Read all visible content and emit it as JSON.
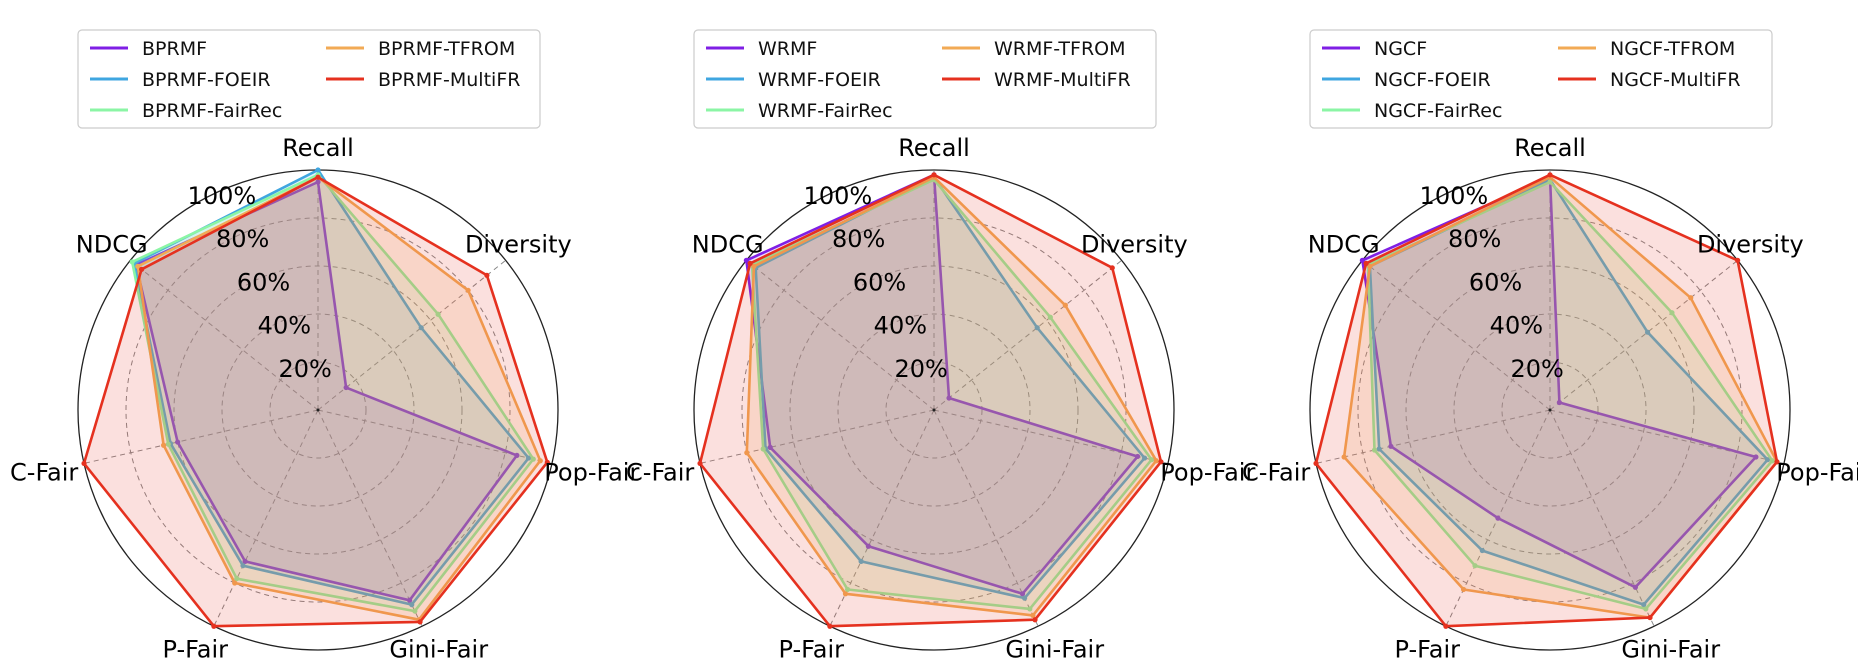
{
  "axes": [
    "Recall",
    "Diversity",
    "Pop-Fair",
    "Gini-Fair",
    "P-Fair",
    "C-Fair",
    "NDCG"
  ],
  "rticks": [
    "20%",
    "40%",
    "60%",
    "80%",
    "100%"
  ],
  "colors": {
    "base": "#7F1FE5",
    "foeir": "#3FA6E0",
    "fairrec": "#8BF5A5",
    "tfrom": "#F2AA55",
    "multifr": "#E5311F"
  },
  "chart_data": [
    {
      "type": "radar",
      "axes": [
        "Recall",
        "Diversity",
        "Pop-Fair",
        "Gini-Fair",
        "P-Fair",
        "C-Fair",
        "NDCG"
      ],
      "rlim": [
        0,
        100
      ],
      "legend_position": "top",
      "series": [
        {
          "name": "BPRMF",
          "color_key": "base",
          "values": [
            95,
            15,
            85,
            88,
            70,
            60,
            97
          ]
        },
        {
          "name": "BPRMF-FOEIR",
          "color_key": "foeir",
          "values": [
            100,
            55,
            90,
            90,
            72,
            63,
            98
          ]
        },
        {
          "name": "BPRMF-FairRec",
          "color_key": "fairrec",
          "values": [
            98,
            64,
            92,
            93,
            78,
            64,
            99
          ]
        },
        {
          "name": "BPRMF-TFROM",
          "color_key": "tfrom",
          "values": [
            97,
            80,
            95,
            97,
            80,
            66,
            96
          ]
        },
        {
          "name": "BPRMF-MultiFR",
          "color_key": "multifr",
          "values": [
            97,
            90,
            98,
            98,
            100,
            100,
            94
          ]
        }
      ]
    },
    {
      "type": "radar",
      "axes": [
        "Recall",
        "Diversity",
        "Pop-Fair",
        "Gini-Fair",
        "P-Fair",
        "C-Fair",
        "NDCG"
      ],
      "rlim": [
        0,
        100
      ],
      "legend_position": "top",
      "series": [
        {
          "name": "WRMF",
          "color_key": "base",
          "values": [
            98,
            8,
            87,
            85,
            63,
            70,
            100
          ]
        },
        {
          "name": "WRMF-FOEIR",
          "color_key": "foeir",
          "values": [
            97,
            55,
            90,
            87,
            70,
            72,
            95
          ]
        },
        {
          "name": "WRMF-FairRec",
          "color_key": "fairrec",
          "values": [
            96,
            62,
            93,
            92,
            83,
            73,
            97
          ]
        },
        {
          "name": "WRMF-TFROM",
          "color_key": "tfrom",
          "values": [
            97,
            70,
            95,
            95,
            85,
            80,
            96
          ]
        },
        {
          "name": "WRMF-MultiFR",
          "color_key": "multifr",
          "values": [
            98,
            95,
            97,
            97,
            100,
            100,
            98
          ]
        }
      ]
    },
    {
      "type": "radar",
      "axes": [
        "Recall",
        "Diversity",
        "Pop-Fair",
        "Gini-Fair",
        "P-Fair",
        "C-Fair",
        "NDCG"
      ],
      "rlim": [
        0,
        100
      ],
      "legend_position": "top",
      "series": [
        {
          "name": "NGCF",
          "color_key": "base",
          "values": [
            97,
            5,
            88,
            82,
            50,
            68,
            100
          ]
        },
        {
          "name": "NGCF-FOEIR",
          "color_key": "foeir",
          "values": [
            96,
            52,
            93,
            90,
            65,
            73,
            96
          ]
        },
        {
          "name": "NGCF-FairRec",
          "color_key": "fairrec",
          "values": [
            95,
            65,
            95,
            92,
            72,
            75,
            97
          ]
        },
        {
          "name": "NGCF-TFROM",
          "color_key": "tfrom",
          "values": [
            97,
            75,
            97,
            96,
            83,
            88,
            96
          ]
        },
        {
          "name": "NGCF-MultiFR",
          "color_key": "multifr",
          "values": [
            98,
            100,
            97,
            96,
            100,
            100,
            98
          ]
        }
      ]
    }
  ]
}
